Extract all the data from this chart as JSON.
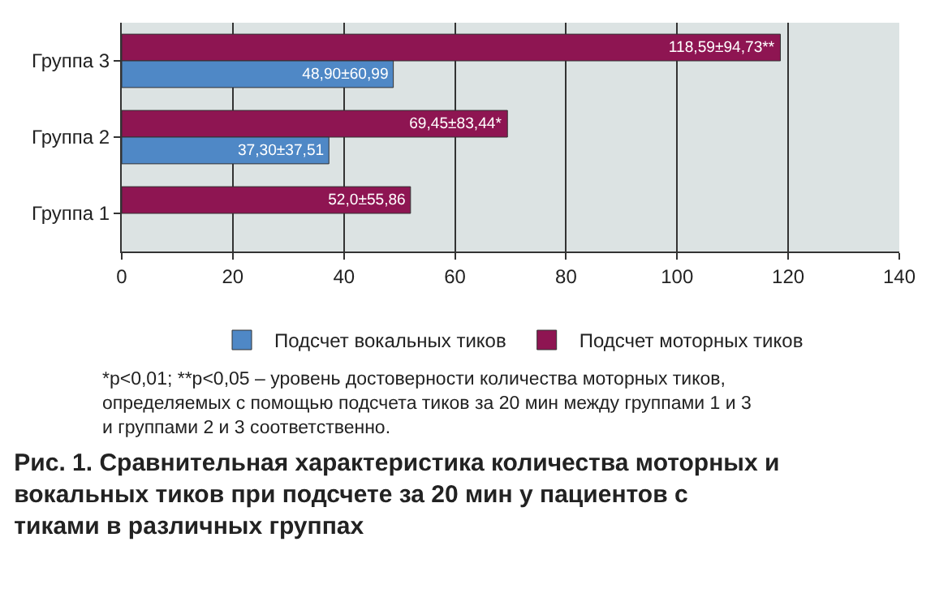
{
  "chart_data": {
    "type": "bar",
    "orientation": "horizontal",
    "title": "Рис. 1. Сравнительная характеристика количества моторных и вокальных тиков при подсчете за 20 мин у пациентов с тиками в различных группах",
    "annotations": [
      "*p<0,01; **p<0,05 – уровень достоверности количества моторных тиков, определяемых с помощью подсчета тиков за 20 мин между группами 1 и 3 и группами 2 и 3 соответственно."
    ],
    "categories": [
      "Группа 3",
      "Группа 2",
      "Группа 1"
    ],
    "series": [
      {
        "name": "Подсчет вокальных тиков",
        "color": "#4f88c6",
        "values": [
          48.9,
          37.3,
          null
        ],
        "value_labels": [
          "48,90±60,99",
          "37,30±37,51",
          null
        ]
      },
      {
        "name": "Подсчет моторных тиков",
        "color": "#8e1552",
        "values": [
          118.59,
          69.45,
          52.0
        ],
        "value_labels": [
          "118,59±94,73**",
          "69,45±83,44*",
          "52,0±55,86"
        ]
      }
    ],
    "xlim": [
      0,
      140
    ],
    "xticks": [
      0,
      20,
      40,
      60,
      80,
      100,
      120,
      140
    ],
    "grid": "x",
    "legend": "bottom"
  }
}
